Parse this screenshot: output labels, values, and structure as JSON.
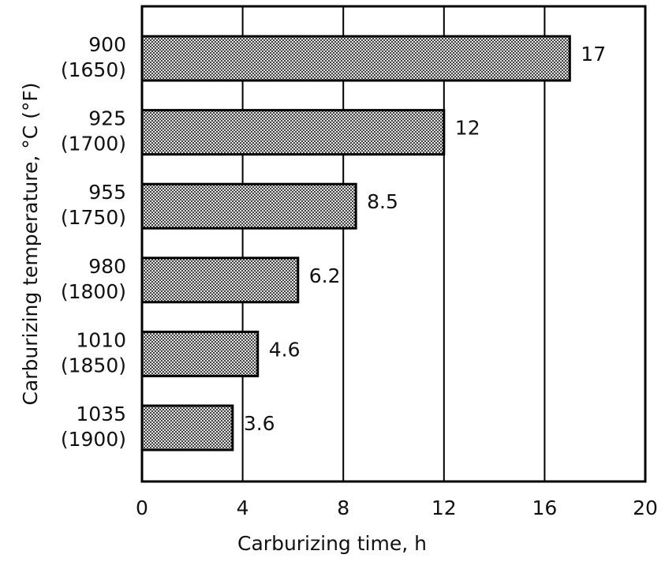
{
  "chart_data": {
    "type": "barh",
    "categories": [
      "900 (1650)",
      "925 (1700)",
      "955 (1750)",
      "980 (1800)",
      "1010 (1850)",
      "1035 (1900)"
    ],
    "values": [
      17,
      12,
      8.5,
      6.2,
      4.6,
      3.6
    ],
    "color": "#555555",
    "xlabel": "Carburizing time, h",
    "ylabel": "Carburizing temperature, °C (°F)",
    "xlim": [
      0,
      20
    ],
    "xticks": [
      0,
      4,
      8,
      12,
      16,
      20
    ],
    "grid": true
  }
}
